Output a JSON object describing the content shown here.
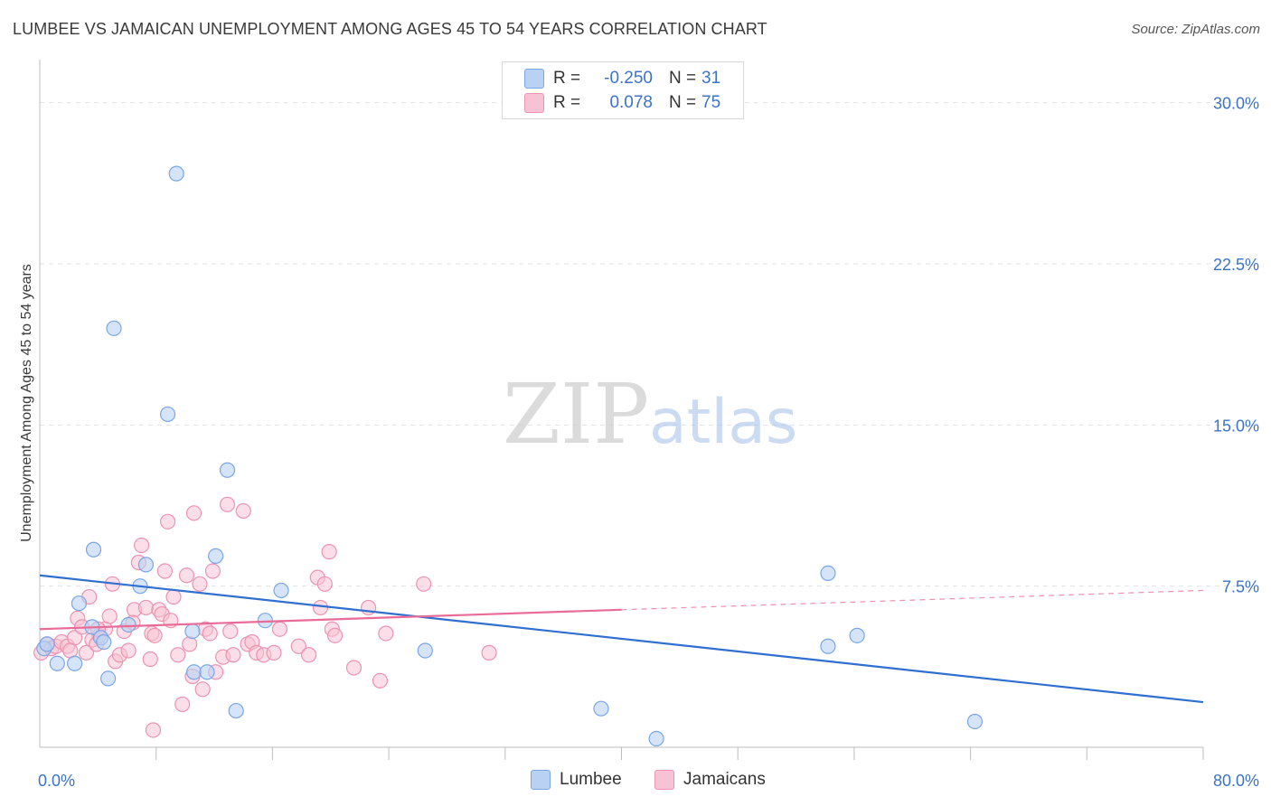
{
  "title": "LUMBEE VS JAMAICAN UNEMPLOYMENT AMONG AGES 45 TO 54 YEARS CORRELATION CHART",
  "source": "Source: ZipAtlas.com",
  "watermark": {
    "zip": "ZIP",
    "atlas": "atlas"
  },
  "colors": {
    "lumbee_fill": "#b9d2f3",
    "lumbee_stroke": "#7aa6e6",
    "lumbee_line": "#2f6fd0",
    "jamaican_fill": "#f7c2d3",
    "jamaican_stroke": "#ec93b0",
    "jamaican_line": "#e86b98",
    "axis_text": "#3b73c7",
    "grid": "#e2e2e2"
  },
  "legend": {
    "rows": [
      {
        "r_label": "R =",
        "r_value": "-0.250",
        "n_label": "N =",
        "n_value": "31"
      },
      {
        "r_label": "R =",
        "r_value": "0.078",
        "n_label": "N =",
        "n_value": "75"
      }
    ]
  },
  "bottom_legend": {
    "lumbee": "Lumbee",
    "jamaicans": "Jamaicans"
  },
  "chart_data": {
    "type": "scatter",
    "title": "LUMBEE VS JAMAICAN UNEMPLOYMENT AMONG AGES 45 TO 54 YEARS CORRELATION CHART",
    "xlabel": "",
    "ylabel": "Unemployment Among Ages 45 to 54 years",
    "xlim": [
      0,
      80
    ],
    "ylim": [
      0,
      31.5
    ],
    "x_tick_labels": [
      "0.0%",
      "80.0%"
    ],
    "y_ticks": [
      7.5,
      15.0,
      22.5,
      30.0
    ],
    "y_tick_labels": [
      "7.5%",
      "15.0%",
      "22.5%",
      "30.0%"
    ],
    "series": [
      {
        "name": "Lumbee",
        "r": -0.25,
        "n": 31,
        "trend": {
          "x0": 0,
          "y0": 8.0,
          "x1": 80,
          "y1": 2.1
        },
        "points": [
          [
            0.3,
            4.6
          ],
          [
            0.5,
            4.8
          ],
          [
            1.2,
            3.9
          ],
          [
            2.4,
            3.9
          ],
          [
            2.7,
            6.7
          ],
          [
            3.6,
            5.6
          ],
          [
            3.7,
            9.2
          ],
          [
            4.2,
            5.1
          ],
          [
            4.4,
            4.9
          ],
          [
            4.7,
            3.2
          ],
          [
            5.1,
            19.5
          ],
          [
            6.1,
            5.7
          ],
          [
            6.9,
            7.5
          ],
          [
            7.3,
            8.5
          ],
          [
            8.8,
            15.5
          ],
          [
            9.4,
            26.7
          ],
          [
            10.5,
            5.4
          ],
          [
            10.6,
            3.5
          ],
          [
            11.5,
            3.5
          ],
          [
            12.1,
            8.9
          ],
          [
            12.9,
            12.9
          ],
          [
            13.5,
            1.7
          ],
          [
            15.5,
            5.9
          ],
          [
            16.6,
            7.3
          ],
          [
            26.5,
            4.5
          ],
          [
            38.6,
            1.8
          ],
          [
            42.4,
            0.4
          ],
          [
            54.2,
            8.1
          ],
          [
            54.2,
            4.7
          ],
          [
            56.2,
            5.2
          ],
          [
            64.3,
            1.2
          ]
        ]
      },
      {
        "name": "Jamaicans",
        "r": 0.078,
        "n": 75,
        "trend": {
          "x0": 0,
          "y0": 5.5,
          "x1": 80,
          "y1": 7.3,
          "solid_until_x": 40
        },
        "points": [
          [
            0.1,
            4.4
          ],
          [
            0.5,
            4.8
          ],
          [
            0.8,
            4.6
          ],
          [
            1.1,
            4.7
          ],
          [
            1.5,
            4.9
          ],
          [
            1.9,
            4.7
          ],
          [
            2.4,
            5.1
          ],
          [
            2.6,
            6.0
          ],
          [
            2.9,
            5.6
          ],
          [
            3.2,
            4.4
          ],
          [
            3.4,
            7.0
          ],
          [
            3.6,
            5.0
          ],
          [
            3.9,
            4.8
          ],
          [
            4.1,
            5.2
          ],
          [
            4.5,
            5.5
          ],
          [
            4.8,
            6.1
          ],
          [
            5.0,
            7.6
          ],
          [
            5.2,
            4.0
          ],
          [
            5.5,
            4.3
          ],
          [
            5.8,
            5.4
          ],
          [
            6.1,
            4.5
          ],
          [
            6.5,
            6.4
          ],
          [
            6.8,
            8.6
          ],
          [
            7.0,
            9.4
          ],
          [
            7.3,
            6.5
          ],
          [
            7.6,
            4.1
          ],
          [
            7.7,
            5.3
          ],
          [
            7.9,
            5.2
          ],
          [
            8.2,
            6.4
          ],
          [
            8.4,
            6.2
          ],
          [
            8.6,
            8.2
          ],
          [
            8.8,
            10.5
          ],
          [
            9.0,
            5.9
          ],
          [
            9.2,
            7.0
          ],
          [
            9.5,
            4.3
          ],
          [
            9.8,
            2.0
          ],
          [
            10.1,
            8.0
          ],
          [
            10.3,
            4.8
          ],
          [
            10.5,
            3.3
          ],
          [
            10.6,
            10.9
          ],
          [
            11.0,
            7.6
          ],
          [
            11.2,
            2.7
          ],
          [
            11.4,
            5.5
          ],
          [
            11.7,
            5.3
          ],
          [
            11.9,
            8.2
          ],
          [
            12.1,
            3.5
          ],
          [
            12.6,
            4.2
          ],
          [
            12.9,
            11.3
          ],
          [
            13.3,
            4.3
          ],
          [
            14.0,
            11.0
          ],
          [
            14.3,
            4.8
          ],
          [
            14.6,
            4.9
          ],
          [
            14.9,
            4.4
          ],
          [
            15.4,
            4.3
          ],
          [
            16.1,
            4.4
          ],
          [
            16.5,
            5.5
          ],
          [
            17.8,
            4.7
          ],
          [
            18.5,
            4.3
          ],
          [
            19.1,
            7.9
          ],
          [
            19.3,
            6.5
          ],
          [
            19.6,
            7.6
          ],
          [
            19.9,
            9.1
          ],
          [
            20.1,
            5.5
          ],
          [
            20.3,
            5.2
          ],
          [
            21.6,
            3.7
          ],
          [
            22.6,
            6.5
          ],
          [
            23.4,
            3.1
          ],
          [
            23.8,
            5.3
          ],
          [
            26.4,
            7.6
          ],
          [
            30.9,
            4.4
          ],
          [
            7.8,
            0.8
          ],
          [
            4.0,
            5.5
          ],
          [
            2.1,
            4.5
          ],
          [
            6.4,
            5.8
          ],
          [
            13.1,
            5.4
          ]
        ]
      }
    ]
  }
}
